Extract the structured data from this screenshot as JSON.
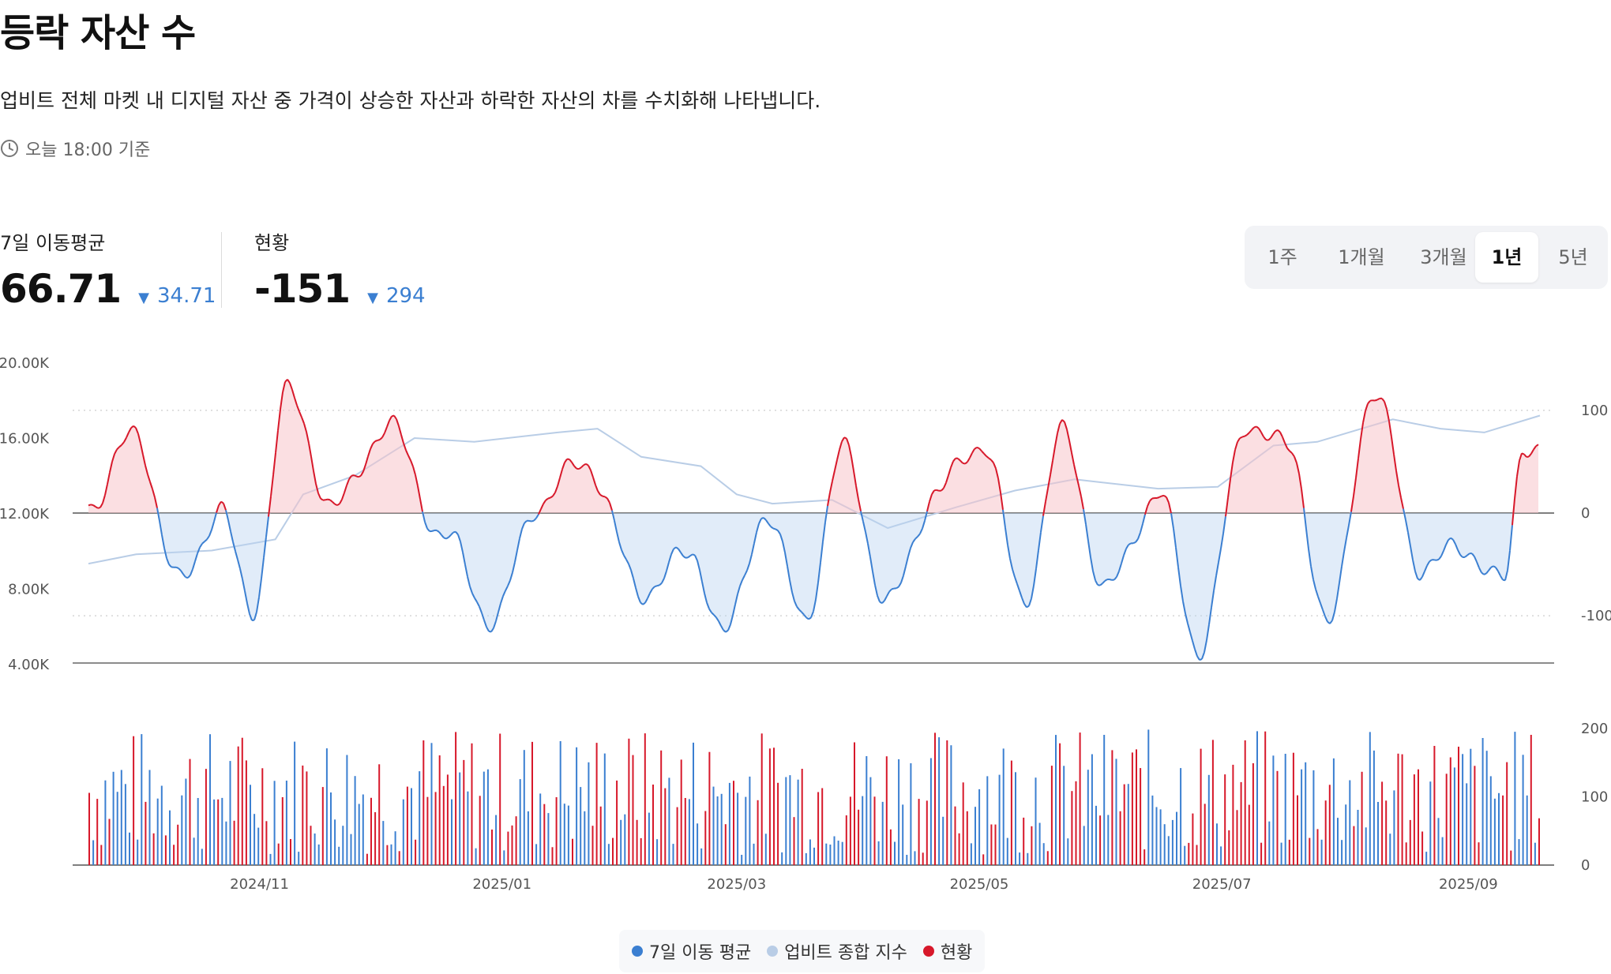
{
  "header": {
    "title": "등락 자산 수",
    "description": "업비트 전체 마켓 내 디지털 자산 중 가격이 상승한 자산과 하락한 자산의 차를 수치화해 나타냅니다.",
    "updated": "오늘 18:00 기준"
  },
  "metrics": [
    {
      "label": "7일 이동평균",
      "value": "66.71",
      "delta": "34.71",
      "direction": "down"
    },
    {
      "label": "현황",
      "value": "-151",
      "delta": "294",
      "direction": "down"
    }
  ],
  "period_tabs": {
    "items": [
      "1주",
      "1개월",
      "3개월",
      "1년",
      "5년"
    ],
    "selected": "1년"
  },
  "colors": {
    "ma7": "#3b7fd1",
    "index": "#b9cde6",
    "current": "#d7182a",
    "up_fill": "#f7c5cb",
    "down_fill": "#bcd4f2"
  },
  "chart_data": {
    "type": "line",
    "x_range": [
      "2024-09-19",
      "2025-09-19"
    ],
    "x_ticks": [
      "2024/11",
      "2025/01",
      "2025/03",
      "2025/05",
      "2025/07",
      "2025/09"
    ],
    "left_axis": {
      "ticks": [
        "20.00K",
        "16.00K",
        "12.00K",
        "8.00K",
        "4.00K"
      ],
      "range": [
        4000,
        20000
      ]
    },
    "right_axis": {
      "ticks": [
        "100",
        "0",
        "-100"
      ],
      "range": [
        -146,
        146
      ]
    },
    "volume_axis": {
      "ticks": [
        "200",
        "100",
        "0"
      ],
      "range": [
        0,
        200
      ]
    },
    "series": [
      {
        "name": "7일 이동 평균",
        "color": "#3b7fd1",
        "points": [
          [
            "2024-09-19",
            10
          ],
          [
            "2024-10-01",
            75
          ],
          [
            "2024-10-12",
            -70
          ],
          [
            "2024-10-22",
            5
          ],
          [
            "2024-10-30",
            -95
          ],
          [
            "2024-11-08",
            115
          ],
          [
            "2024-11-20",
            5
          ],
          [
            "2024-12-03",
            85
          ],
          [
            "2024-12-18",
            -25
          ],
          [
            "2024-12-30",
            -105
          ],
          [
            "2025-01-10",
            10
          ],
          [
            "2025-01-22",
            50
          ],
          [
            "2025-02-05",
            -75
          ],
          [
            "2025-02-18",
            -40
          ],
          [
            "2025-02-26",
            -120
          ],
          [
            "2025-03-08",
            0
          ],
          [
            "2025-03-18",
            -100
          ],
          [
            "2025-03-28",
            60
          ],
          [
            "2025-04-08",
            -90
          ],
          [
            "2025-04-20",
            20
          ],
          [
            "2025-05-02",
            70
          ],
          [
            "2025-05-12",
            -85
          ],
          [
            "2025-05-22",
            75
          ],
          [
            "2025-06-02",
            -75
          ],
          [
            "2025-06-15",
            20
          ],
          [
            "2025-06-25",
            -130
          ],
          [
            "2025-07-08",
            90
          ],
          [
            "2025-07-18",
            60
          ],
          [
            "2025-07-28",
            -110
          ],
          [
            "2025-08-08",
            120
          ],
          [
            "2025-08-20",
            -50
          ],
          [
            "2025-09-01",
            -35
          ],
          [
            "2025-09-10",
            -70
          ],
          [
            "2025-09-15",
            70
          ],
          [
            "2025-09-19",
            66.71
          ]
        ]
      },
      {
        "name": "업비트 종합 지수",
        "color": "#b9cde6",
        "points": [
          [
            "2024-09-19",
            9300
          ],
          [
            "2024-10-01",
            9800
          ],
          [
            "2024-10-20",
            10000
          ],
          [
            "2024-11-05",
            10600
          ],
          [
            "2024-11-12",
            13000
          ],
          [
            "2024-11-25",
            14000
          ],
          [
            "2024-12-10",
            16000
          ],
          [
            "2024-12-25",
            15800
          ],
          [
            "2025-01-15",
            16300
          ],
          [
            "2025-01-25",
            16500
          ],
          [
            "2025-02-05",
            15000
          ],
          [
            "2025-02-20",
            14500
          ],
          [
            "2025-03-01",
            13000
          ],
          [
            "2025-03-10",
            12500
          ],
          [
            "2025-03-25",
            12700
          ],
          [
            "2025-04-08",
            11200
          ],
          [
            "2025-04-25",
            12300
          ],
          [
            "2025-05-10",
            13200
          ],
          [
            "2025-05-25",
            13800
          ],
          [
            "2025-06-15",
            13300
          ],
          [
            "2025-06-30",
            13400
          ],
          [
            "2025-07-14",
            15600
          ],
          [
            "2025-07-25",
            15800
          ],
          [
            "2025-08-13",
            17000
          ],
          [
            "2025-08-25",
            16500
          ],
          [
            "2025-09-05",
            16300
          ],
          [
            "2025-09-19",
            17200
          ]
        ]
      },
      {
        "name": "현황",
        "color": "#d7182a",
        "type": "bar",
        "values_description": "daily up/down asset count difference, 0-200 scale"
      }
    ],
    "legend": [
      "7일 이동 평균",
      "업비트 종합 지수",
      "현황"
    ],
    "legend_position": "bottom-center",
    "grid": "dotted horizontal at 100 and -100"
  }
}
